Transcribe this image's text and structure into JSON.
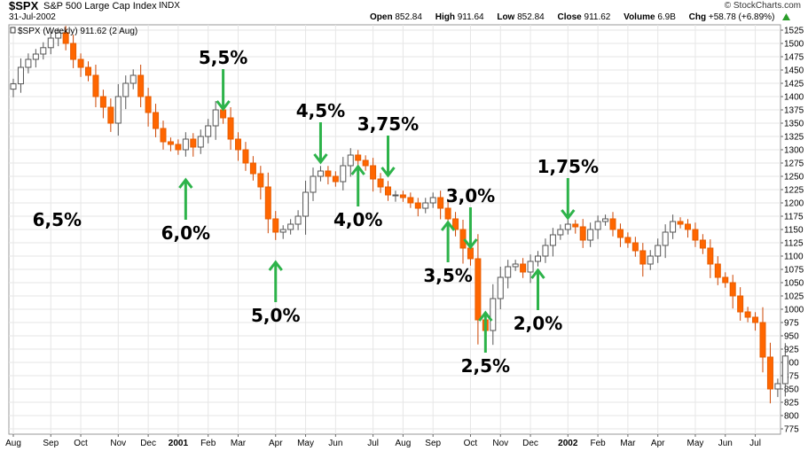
{
  "header": {
    "symbol": "$SPX",
    "name": "S&P 500 Large Cap Index",
    "exchange": "INDX",
    "credit": "© StockCharts.com",
    "date": "31-Jul-2002",
    "open_label": "Open",
    "open_value": "852.84",
    "high_label": "High",
    "high_value": "911.64",
    "low_label": "Low",
    "low_value": "852.84",
    "close_label": "Close",
    "close_value": "911.62",
    "volume_label": "Volume",
    "volume_value": "6.9B",
    "chg_label": "Chg",
    "chg_value": "+58.78 (+6.89%)",
    "up_arrow_color": "#2a9d2a"
  },
  "chart_data": {
    "type": "candlestick",
    "legend_label": "$SPX (Weekly) 911.62 (2 Aug)",
    "y_ticks": [
      775,
      800,
      825,
      850,
      875,
      900,
      925,
      950,
      975,
      1000,
      1025,
      1050,
      1075,
      1100,
      1125,
      1150,
      1175,
      1200,
      1225,
      1250,
      1275,
      1300,
      1325,
      1350,
      1375,
      1400,
      1425,
      1450,
      1475,
      1500,
      1525
    ],
    "ylim": [
      765,
      1535
    ],
    "grid": true,
    "x_ticks": [
      {
        "label": "Aug",
        "week": 0,
        "bold": false
      },
      {
        "label": "Sep",
        "week": 5,
        "bold": false
      },
      {
        "label": "Oct",
        "week": 9,
        "bold": false
      },
      {
        "label": "Nov",
        "week": 14,
        "bold": false
      },
      {
        "label": "Dec",
        "week": 18,
        "bold": false
      },
      {
        "label": "2001",
        "week": 22,
        "bold": true
      },
      {
        "label": "Feb",
        "week": 26,
        "bold": false
      },
      {
        "label": "Mar",
        "week": 30,
        "bold": false
      },
      {
        "label": "Apr",
        "week": 35,
        "bold": false
      },
      {
        "label": "May",
        "week": 39,
        "bold": false
      },
      {
        "label": "Jun",
        "week": 43,
        "bold": false
      },
      {
        "label": "Jul",
        "week": 48,
        "bold": false
      },
      {
        "label": "Aug",
        "week": 52,
        "bold": false
      },
      {
        "label": "Sep",
        "week": 56,
        "bold": false
      },
      {
        "label": "Oct",
        "week": 61,
        "bold": false
      },
      {
        "label": "Nov",
        "week": 65,
        "bold": false
      },
      {
        "label": "Dec",
        "week": 69,
        "bold": false
      },
      {
        "label": "2002",
        "week": 74,
        "bold": true
      },
      {
        "label": "Feb",
        "week": 78,
        "bold": false
      },
      {
        "label": "Mar",
        "week": 82,
        "bold": false
      },
      {
        "label": "Apr",
        "week": 86,
        "bold": false
      },
      {
        "label": "May",
        "week": 91,
        "bold": false
      },
      {
        "label": "Jun",
        "week": 95,
        "bold": false
      },
      {
        "label": "Jul",
        "week": 99,
        "bold": false
      }
    ],
    "up_color": "#ffffff",
    "down_color": "#ff6600",
    "annotation_color": "#2db34a",
    "closes": [
      1424,
      1455,
      1470,
      1480,
      1492,
      1510,
      1520,
      1500,
      1470,
      1455,
      1440,
      1400,
      1380,
      1350,
      1400,
      1425,
      1440,
      1400,
      1370,
      1340,
      1315,
      1310,
      1300,
      1320,
      1305,
      1325,
      1345,
      1375,
      1360,
      1320,
      1300,
      1275,
      1255,
      1230,
      1170,
      1145,
      1150,
      1160,
      1175,
      1220,
      1250,
      1260,
      1250,
      1240,
      1270,
      1290,
      1280,
      1270,
      1245,
      1230,
      1215,
      1215,
      1210,
      1200,
      1190,
      1200,
      1210,
      1190,
      1170,
      1150,
      1115,
      1095,
      980,
      960,
      1020,
      1060,
      1080,
      1085,
      1070,
      1090,
      1100,
      1120,
      1140,
      1150,
      1160,
      1155,
      1130,
      1150,
      1165,
      1170,
      1150,
      1135,
      1125,
      1110,
      1085,
      1100,
      1120,
      1145,
      1165,
      1160,
      1150,
      1130,
      1115,
      1085,
      1060,
      1050,
      1025,
      995,
      985,
      975,
      910,
      850,
      860,
      912
    ],
    "annotations": [
      {
        "label": "6,5%",
        "week": 3,
        "arrow": "none",
        "value": 1210
      },
      {
        "label": "6,0%",
        "week": 23,
        "arrow": "up",
        "value": 1250
      },
      {
        "label": "5,5%",
        "week": 28,
        "arrow": "down",
        "value": 1370
      },
      {
        "label": "5,0%",
        "week": 35,
        "arrow": "up",
        "value": 1095
      },
      {
        "label": "4,5%",
        "week": 41,
        "arrow": "down",
        "value": 1270
      },
      {
        "label": "4,0%",
        "week": 46,
        "arrow": "up",
        "value": 1275
      },
      {
        "label": "3,75%",
        "week": 50,
        "arrow": "down",
        "value": 1245
      },
      {
        "label": "3,5%",
        "week": 58,
        "arrow": "up",
        "value": 1170
      },
      {
        "label": "3,0%",
        "week": 61,
        "arrow": "down",
        "value": 1110
      },
      {
        "label": "2,5%",
        "week": 63,
        "arrow": "up",
        "value": 1000
      },
      {
        "label": "2,0%",
        "week": 70,
        "arrow": "up",
        "value": 1080
      },
      {
        "label": "1,75%",
        "week": 74,
        "arrow": "down",
        "value": 1165
      }
    ]
  }
}
